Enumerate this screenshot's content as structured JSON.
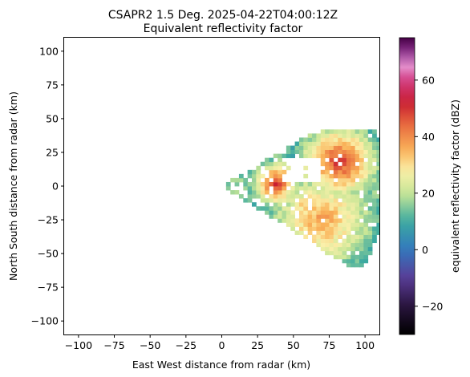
{
  "chart_data": {
    "type": "heatmap",
    "title_line1": "CSAPR2 1.5 Deg. 2025-04-22T04:00:12Z",
    "title_line2": "Equivalent reflectivity factor",
    "xlabel": "East West distance from radar (km)",
    "ylabel": "North South distance from radar (km)",
    "xlim": [
      -110,
      110
    ],
    "ylim": [
      -110,
      110
    ],
    "x_ticks": [
      -100,
      -75,
      -50,
      -25,
      0,
      25,
      50,
      75,
      100
    ],
    "y_ticks": [
      100,
      75,
      50,
      25,
      0,
      -25,
      -50,
      -75,
      -100
    ],
    "colorbar": {
      "label": "equivalent reflectivity factor (dBZ)",
      "range": [
        -30,
        75
      ],
      "ticks": [
        60,
        40,
        20,
        0,
        -20
      ],
      "colormap": "pyart_HomeyerRainbow-like"
    },
    "sector": {
      "origin": [
        0,
        0
      ],
      "azimuth_deg_from_north": [
        58,
        124
      ],
      "max_range_km": 115
    },
    "echo_regions": [
      {
        "center": [
          38,
          2
        ],
        "radius_km": 9,
        "dbz": 50
      },
      {
        "center": [
          82,
          18
        ],
        "radius_km": 15,
        "dbz": 50
      },
      {
        "center": [
          70,
          -25
        ],
        "radius_km": 28,
        "dbz": 38
      },
      {
        "center": [
          60,
          -15
        ],
        "radius_km": 16,
        "dbz": 35
      },
      {
        "center": [
          100,
          5
        ],
        "radius_km": 10,
        "dbz": 25
      }
    ]
  }
}
